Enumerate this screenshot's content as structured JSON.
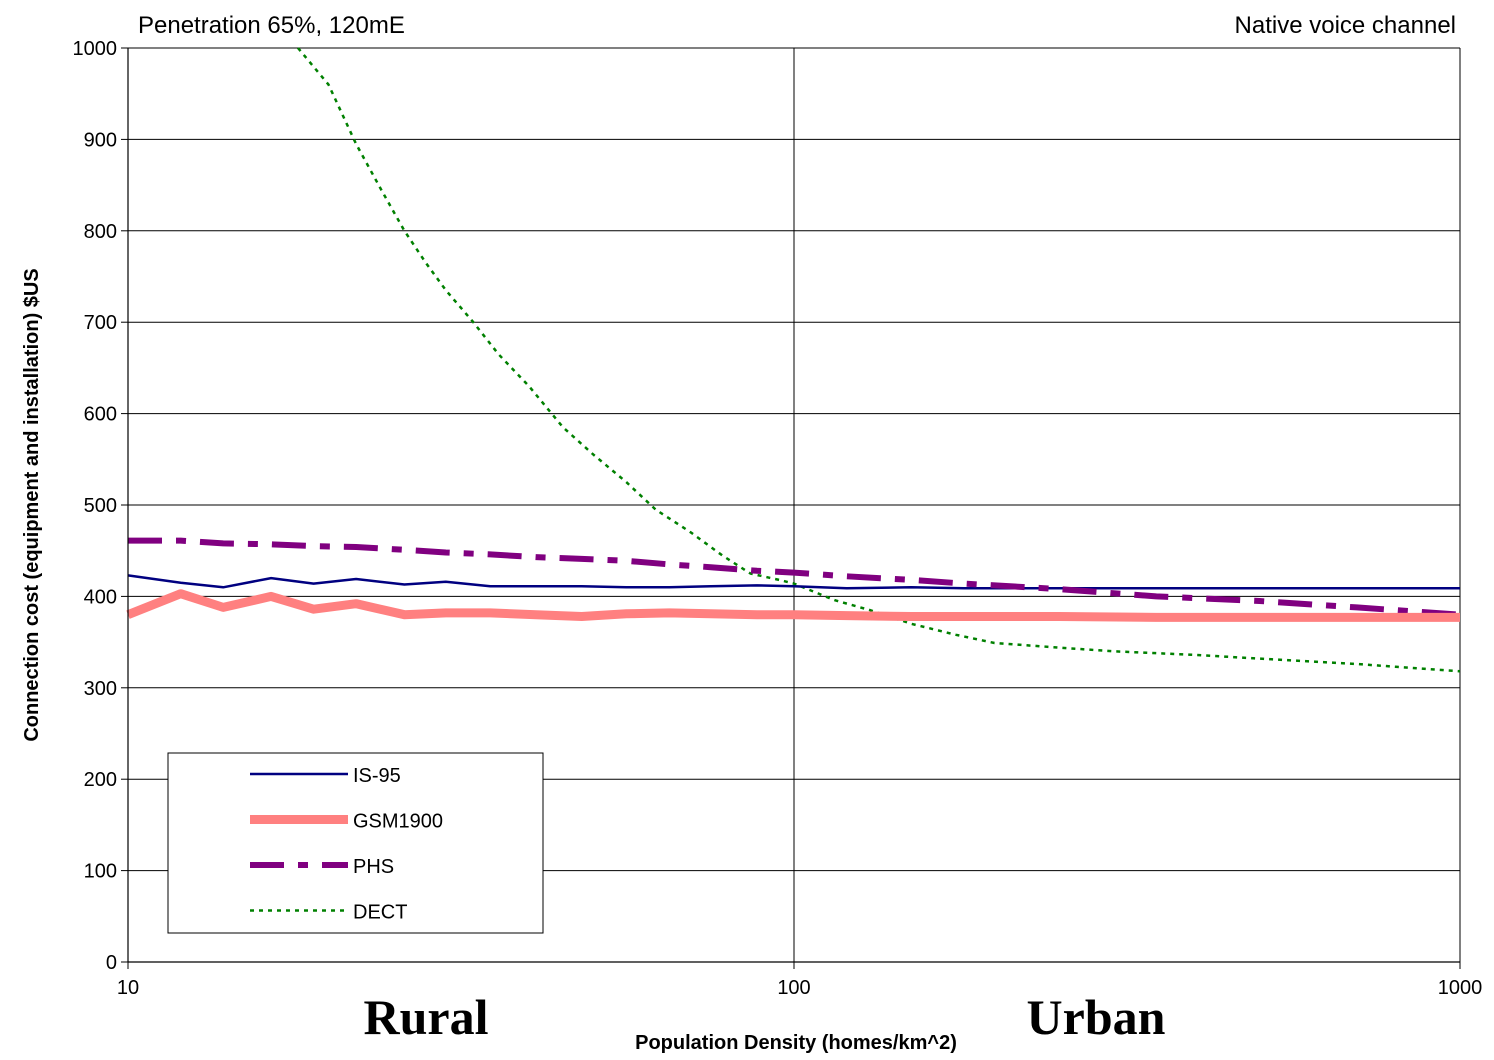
{
  "chart_data": {
    "type": "line",
    "title": "",
    "annotations": {
      "top_left": "Penetration 65%, 120mE",
      "top_right": "Native voice channel",
      "region_left": "Rural",
      "region_right": "Urban"
    },
    "xlabel": "Population Density (homes/km^2)",
    "ylabel": "Connection cost (equipment and installation) $US",
    "x_scale": "log",
    "xlim": [
      10,
      1000
    ],
    "ylim": [
      0,
      1000
    ],
    "x_ticks": [
      10,
      100,
      1000
    ],
    "x_tick_labels": [
      "10",
      "100",
      "1000"
    ],
    "y_ticks": [
      0,
      100,
      200,
      300,
      400,
      500,
      600,
      700,
      800,
      900,
      1000
    ],
    "y_tick_labels": [
      "0",
      "100",
      "200",
      "300",
      "400",
      "500",
      "600",
      "700",
      "800",
      "900",
      "1000"
    ],
    "grid": "major",
    "legend_position": "bottom-left",
    "series": [
      {
        "name": "IS-95",
        "color": "#000080",
        "style": "solid-thin",
        "x": [
          10,
          12,
          13.9,
          16.4,
          19,
          22,
          26,
          30,
          35,
          41,
          48,
          56,
          65,
          75,
          88,
          100,
          120,
          150,
          180,
          250,
          350,
          500,
          700,
          1000
        ],
        "y": [
          423,
          415,
          410,
          420,
          414,
          419,
          413,
          416,
          411,
          411,
          411,
          410,
          410,
          411,
          412,
          411,
          409,
          410,
          409,
          409,
          409,
          409,
          409,
          409
        ]
      },
      {
        "name": "GSM1900",
        "color": "#ff8080",
        "style": "solid-thick",
        "x": [
          10,
          12,
          13.9,
          16.4,
          19,
          22,
          26,
          30,
          35,
          41,
          48,
          56,
          65,
          75,
          88,
          100,
          120,
          150,
          180,
          250,
          350,
          500,
          700,
          1000
        ],
        "y": [
          380,
          403,
          388,
          400,
          386,
          392,
          380,
          382,
          382,
          380,
          378,
          381,
          382,
          381,
          380,
          380,
          379,
          378,
          378,
          378,
          377,
          377,
          377,
          377
        ]
      },
      {
        "name": "PHS",
        "color": "#800080",
        "style": "dash-dot",
        "x": [
          10,
          12,
          13.9,
          16.4,
          19,
          22,
          26,
          30,
          35,
          41,
          48,
          56,
          65,
          75,
          88,
          100,
          120,
          150,
          180,
          250,
          350,
          500,
          700,
          1000
        ],
        "y": [
          461,
          461,
          458,
          457,
          455,
          454,
          451,
          448,
          446,
          443,
          441,
          439,
          435,
          432,
          428,
          426,
          422,
          418,
          414,
          408,
          400,
          395,
          388,
          380
        ]
      },
      {
        "name": "DECT",
        "color": "#008000",
        "style": "dotted",
        "x": [
          18,
          20,
          22,
          24,
          26,
          28,
          30,
          33,
          36,
          40,
          45,
          50,
          56,
          62,
          70,
          78,
          86,
          95,
          100,
          115,
          130,
          150,
          175,
          200,
          250,
          300,
          400,
          500,
          700,
          1000
        ],
        "y": [
          1000,
          960,
          895,
          845,
          800,
          765,
          735,
          700,
          665,
          630,
          585,
          555,
          525,
          495,
          470,
          445,
          425,
          418,
          414,
          396,
          385,
          370,
          358,
          349,
          344,
          340,
          336,
          332,
          326,
          318
        ]
      }
    ]
  }
}
